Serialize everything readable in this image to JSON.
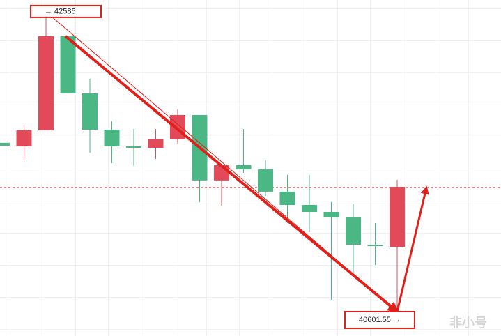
{
  "chart_data": {
    "type": "candlestick",
    "open": [
      41718,
      41695,
      41801,
      42424,
      42045,
      41805,
      41695,
      41685,
      41741,
      41902,
      41469,
      41570,
      41542,
      41395,
      41307,
      41261,
      41224,
      41044,
      41030
    ],
    "high": [
      41718,
      41833,
      42585,
      42424,
      42142,
      41861,
      41810,
      41810,
      41939,
      41902,
      41570,
      41810,
      41602,
      41506,
      41506,
      41326,
      41312,
      41187,
      41473
    ],
    "low": [
      41699,
      41602,
      41801,
      42045,
      41653,
      41584,
      41566,
      41612,
      41713,
      41326,
      41303,
      41519,
      41367,
      41187,
      41127,
      40680,
      40841,
      40911,
      40601.55
    ],
    "close": [
      41699,
      41801,
      42424,
      42045,
      41805,
      41695,
      41685,
      41741,
      41902,
      41469,
      41570,
      41542,
      41395,
      41307,
      41261,
      41224,
      41044,
      41035,
      41427
    ],
    "colors": {
      "up": "#e24a5a",
      "down": "#4bb784"
    },
    "ylim": [
      40440,
      42663
    ],
    "price_line": {
      "value": 41423,
      "color": "#e04040"
    },
    "annotations": [
      {
        "label": "← 42585",
        "value": 42585,
        "index": 2
      },
      {
        "label": "40601.55 →",
        "value": 40601.55,
        "index": 18
      }
    ],
    "arrow_color": "#e0201a",
    "watermark": "非小号"
  }
}
